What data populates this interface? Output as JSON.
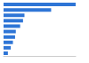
{
  "chart_data": {
    "type": "bar",
    "orientation": "horizontal",
    "categories": [
      null,
      null,
      null,
      null,
      null,
      null,
      null,
      null,
      null,
      null
    ],
    "values": [
      100,
      66,
      29,
      27,
      23,
      17,
      16,
      13,
      10,
      6
    ],
    "color": "#2e75d6",
    "xlim": [
      0,
      100
    ],
    "grid": false,
    "tick_labels": false
  }
}
